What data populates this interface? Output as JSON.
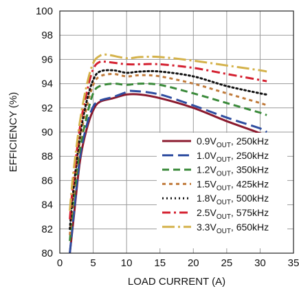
{
  "chart_data": {
    "type": "line",
    "xlabel": "LOAD CURRENT (A)",
    "ylabel": "EFFICIENCY (%)",
    "xlim": [
      0,
      35
    ],
    "ylim": [
      80,
      100
    ],
    "xticks": [
      "0",
      "5",
      "10",
      "15",
      "20",
      "25",
      "30",
      "35"
    ],
    "yticks": [
      "80",
      "82",
      "84",
      "86",
      "88",
      "90",
      "92",
      "94",
      "96",
      "98",
      "100"
    ],
    "grid": true,
    "legend_position": "bottom-right",
    "series": [
      {
        "name": "0.9VOUT, 250kHz",
        "legend_main": "0.9V",
        "legend_sub": "OUT",
        "legend_rest": ", 250kHz",
        "color": "#8b1a2e",
        "dash": "solid",
        "x": [
          1.5,
          2,
          3,
          4,
          5,
          6,
          8,
          10,
          12,
          15,
          20,
          25,
          30,
          31
        ],
        "y": [
          80,
          82.5,
          87.5,
          90.2,
          91.8,
          92.5,
          92.8,
          93.1,
          93.1,
          92.8,
          92,
          90.9,
          89.9,
          89.6
        ]
      },
      {
        "name": "1.0VOUT, 250kHz",
        "legend_main": "1.0V",
        "legend_sub": "OUT",
        "legend_rest": ", 250kHz",
        "color": "#2e4da0",
        "dash": "long-dash",
        "x": [
          1.5,
          2,
          3,
          4,
          5,
          6,
          8,
          10,
          11,
          15,
          20,
          25,
          30,
          31
        ],
        "y": [
          80,
          82.7,
          87.8,
          90.5,
          92.1,
          92.6,
          92.9,
          93.3,
          93.4,
          93.1,
          92.2,
          91.2,
          90.3,
          90
        ]
      },
      {
        "name": "1.2VOUT, 350kHz",
        "legend_main": "1.2V",
        "legend_sub": "OUT",
        "legend_rest": ", 350kHz",
        "color": "#3a8a3a",
        "dash": "dash",
        "x": [
          1.5,
          2,
          3,
          4,
          5,
          6,
          8,
          10,
          12,
          15,
          20,
          25,
          30,
          31
        ],
        "y": [
          81,
          84,
          88.5,
          91.2,
          93.2,
          93.8,
          94,
          93.9,
          94,
          93.9,
          93.2,
          92.4,
          91.6,
          91.4
        ]
      },
      {
        "name": "1.5VOUT, 425kHz",
        "legend_main": "1.5V",
        "legend_sub": "OUT",
        "legend_rest": ", 425kHz",
        "color": "#c07a3a",
        "dash": "short-dash",
        "x": [
          1.5,
          2,
          3,
          4,
          5,
          6,
          8,
          10,
          12,
          15,
          20,
          25,
          30,
          31
        ],
        "y": [
          81.5,
          84.5,
          89.2,
          92,
          93.9,
          94.6,
          94.8,
          94.6,
          94.7,
          94.6,
          94,
          93.2,
          92.4,
          92.2
        ]
      },
      {
        "name": "1.8VOUT, 500kHz",
        "legend_main": "1.8V",
        "legend_sub": "OUT",
        "legend_rest": ", 500kHz",
        "color": "#111111",
        "dash": "dot",
        "x": [
          1.5,
          2,
          3,
          4,
          5,
          6,
          8,
          10,
          12,
          15,
          20,
          25,
          30,
          31
        ],
        "y": [
          82,
          85,
          89.6,
          92.5,
          94.3,
          95,
          95.1,
          94.9,
          95,
          95,
          94.6,
          93.8,
          93.2,
          93.1
        ]
      },
      {
        "name": "2.5VOUT, 575kHz",
        "legend_main": "2.5V",
        "legend_sub": "OUT",
        "legend_rest": ", 575kHz",
        "color": "#d42030",
        "dash": "dash-dot",
        "x": [
          1.5,
          2,
          3,
          4,
          5,
          6,
          7,
          10,
          12,
          15,
          20,
          25,
          30,
          31
        ],
        "y": [
          82.8,
          85.8,
          90.3,
          93.2,
          95.2,
          95.8,
          95.8,
          95.6,
          95.6,
          95.6,
          95.3,
          94.8,
          94.3,
          94.2
        ]
      },
      {
        "name": "3.3VOUT, 650kHz",
        "legend_main": "3.3V",
        "legend_sub": "OUT",
        "legend_rest": ", 650kHz",
        "color": "#d4b24a",
        "dash": "long-dash-dot",
        "x": [
          1.5,
          2,
          3,
          4,
          5,
          6,
          7,
          10,
          12,
          15,
          20,
          25,
          30,
          31
        ],
        "y": [
          83.5,
          86.5,
          90.8,
          93.8,
          95.7,
          96.3,
          96.4,
          96.1,
          96.2,
          96.2,
          95.9,
          95.5,
          95.1,
          95
        ]
      }
    ]
  }
}
